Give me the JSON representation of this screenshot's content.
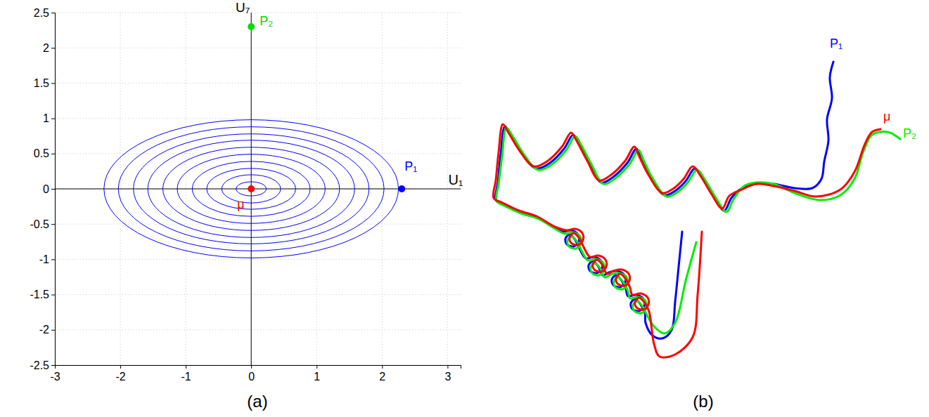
{
  "chart_data": [
    {
      "type": "scatter",
      "title": "(a)",
      "xlabel": "U₁",
      "ylabel": "U₇",
      "xlim": [
        -3,
        3.2
      ],
      "ylim": [
        -2.5,
        2.5
      ],
      "xticks": [
        -3,
        -2,
        -1,
        0,
        1,
        2,
        3
      ],
      "yticks": [
        -2.5,
        -2,
        -1.5,
        -1,
        -0.5,
        0,
        0.5,
        1,
        1.5,
        2,
        2.5
      ],
      "grid": true,
      "ellipses": {
        "cx": 0,
        "cy": 0,
        "color": "#0000ff",
        "rx": [
          0.23,
          0.45,
          0.68,
          0.9,
          1.13,
          1.35,
          1.58,
          1.8,
          2.03,
          2.25
        ],
        "ry": [
          0.1,
          0.2,
          0.29,
          0.39,
          0.49,
          0.59,
          0.69,
          0.78,
          0.88,
          0.98
        ]
      },
      "series": [
        {
          "name": "P₁",
          "color": "#0000ff",
          "marker": "circle",
          "x": [
            2.3
          ],
          "values": [
            0
          ]
        },
        {
          "name": "P₂",
          "color": "#00dd00",
          "marker": "circle",
          "x": [
            0
          ],
          "values": [
            2.3
          ]
        },
        {
          "name": "μ",
          "color": "#ff0000",
          "marker": "circle",
          "x": [
            0
          ],
          "values": [
            0
          ]
        }
      ]
    },
    {
      "type": "line",
      "title": "(b)",
      "xlim": [
        0,
        620
      ],
      "ylim": [
        0,
        480
      ],
      "tick_labels": false,
      "grid": false,
      "series": [
        {
          "name": "P₁",
          "color": "#0000ff",
          "line_style": "solid",
          "x": [
            495,
            490,
            493,
            486,
            488,
            482,
            478,
            465,
            440,
            410,
            385,
            365,
            350,
            340,
            325,
            310,
            298,
            285,
            270,
            255,
            235,
            222,
            215,
            202,
            182,
            165,
            148,
            132,
            125,
            112,
            92,
            72,
            52,
            36,
            28,
            22,
            18,
            15,
            28,
            50,
            75,
            100,
            110,
            122,
            132,
            133,
            126,
            116,
            114,
            120,
            128,
            134,
            143,
            155,
            165,
            166,
            159,
            149,
            147,
            153,
            161,
            167,
            176,
            188,
            198,
            199,
            192,
            182,
            180,
            186,
            194,
            200,
            203,
            215,
            225,
            226,
            219,
            209,
            207,
            213,
            221,
            227,
            228,
            238,
            252,
            265,
            270,
            275,
            280
          ],
          "values": [
            452,
            430,
            400,
            370,
            340,
            310,
            285,
            272,
            272,
            278,
            278,
            272,
            258,
            240,
            260,
            285,
            300,
            282,
            268,
            262,
            288,
            314,
            328,
            308,
            288,
            280,
            308,
            338,
            348,
            328,
            308,
            300,
            322,
            348,
            360,
            320,
            280,
            255,
            248,
            238,
            230,
            215,
            210,
            212,
            206,
            196,
            189,
            192,
            200,
            206,
            198,
            186,
            172,
            174,
            168,
            158,
            151,
            154,
            162,
            168,
            160,
            148,
            152,
            154,
            148,
            138,
            131,
            134,
            142,
            148,
            140,
            128,
            118,
            120,
            114,
            104,
            97,
            100,
            108,
            114,
            106,
            94,
            80,
            62,
            58,
            70,
            110,
            160,
            210
          ]
        },
        {
          "name": "P₂",
          "color": "#00ee00",
          "line_style": "solid",
          "x": [
            590,
            572,
            550,
            538,
            525,
            505,
            475,
            440,
            410,
            385,
            368,
            353,
            343,
            328,
            313,
            301,
            288,
            273,
            258,
            238,
            225,
            218,
            205,
            185,
            168,
            151,
            135,
            128,
            115,
            95,
            75,
            55,
            39,
            30,
            24,
            19,
            16,
            29,
            51,
            76,
            101,
            113,
            125,
            135,
            136,
            129,
            119,
            117,
            123,
            131,
            137,
            146,
            158,
            168,
            169,
            162,
            152,
            150,
            156,
            164,
            170,
            179,
            191,
            201,
            202,
            195,
            185,
            183,
            189,
            197,
            203,
            206,
            218,
            228,
            229,
            222,
            212,
            210,
            216,
            224,
            230,
            240,
            255,
            270,
            285,
            300
          ],
          "values": [
            342,
            352,
            348,
            325,
            285,
            262,
            255,
            265,
            278,
            280,
            275,
            256,
            238,
            258,
            283,
            298,
            280,
            266,
            260,
            286,
            312,
            326,
            306,
            286,
            278,
            306,
            336,
            346,
            326,
            306,
            298,
            320,
            346,
            358,
            318,
            278,
            254,
            246,
            236,
            228,
            213,
            207,
            209,
            203,
            193,
            186,
            189,
            197,
            203,
            195,
            183,
            169,
            171,
            165,
            155,
            148,
            151,
            159,
            165,
            157,
            145,
            149,
            151,
            145,
            135,
            128,
            131,
            139,
            145,
            137,
            125,
            115,
            117,
            111,
            101,
            94,
            97,
            105,
            111,
            103,
            91,
            75,
            65,
            80,
            140,
            195
          ]
        },
        {
          "name": "μ",
          "color": "#ff0000",
          "line_style": "solid",
          "x": [
            562,
            550,
            540,
            525,
            505,
            470,
            440,
            410,
            385,
            365,
            347,
            337,
            322,
            307,
            295,
            282,
            267,
            252,
            232,
            219,
            212,
            199,
            179,
            162,
            145,
            129,
            122,
            109,
            89,
            69,
            49,
            33,
            25,
            19,
            15,
            12,
            25,
            48,
            73,
            99,
            116,
            128,
            138,
            139,
            132,
            122,
            120,
            126,
            134,
            140,
            149,
            161,
            171,
            172,
            165,
            155,
            153,
            159,
            167,
            173,
            182,
            194,
            204,
            205,
            198,
            188,
            186,
            192,
            200,
            206,
            209,
            221,
            231,
            232,
            225,
            215,
            213,
            219,
            227,
            233,
            240,
            248,
            270,
            295,
            302,
            308
          ],
          "values": [
            356,
            352,
            335,
            295,
            270,
            260,
            268,
            275,
            278,
            270,
            261,
            243,
            263,
            288,
            303,
            285,
            271,
            265,
            291,
            317,
            331,
            311,
            291,
            283,
            311,
            341,
            351,
            331,
            311,
            303,
            325,
            351,
            363,
            323,
            283,
            258,
            251,
            240,
            232,
            217,
            212,
            214,
            208,
            198,
            191,
            194,
            202,
            208,
            200,
            188,
            174,
            176,
            170,
            160,
            153,
            156,
            164,
            170,
            162,
            150,
            154,
            156,
            150,
            140,
            133,
            136,
            144,
            150,
            142,
            130,
            120,
            122,
            116,
            106,
            99,
            102,
            110,
            116,
            108,
            96,
            50,
            32,
            35,
            60,
            120,
            210
          ]
        }
      ]
    }
  ]
}
